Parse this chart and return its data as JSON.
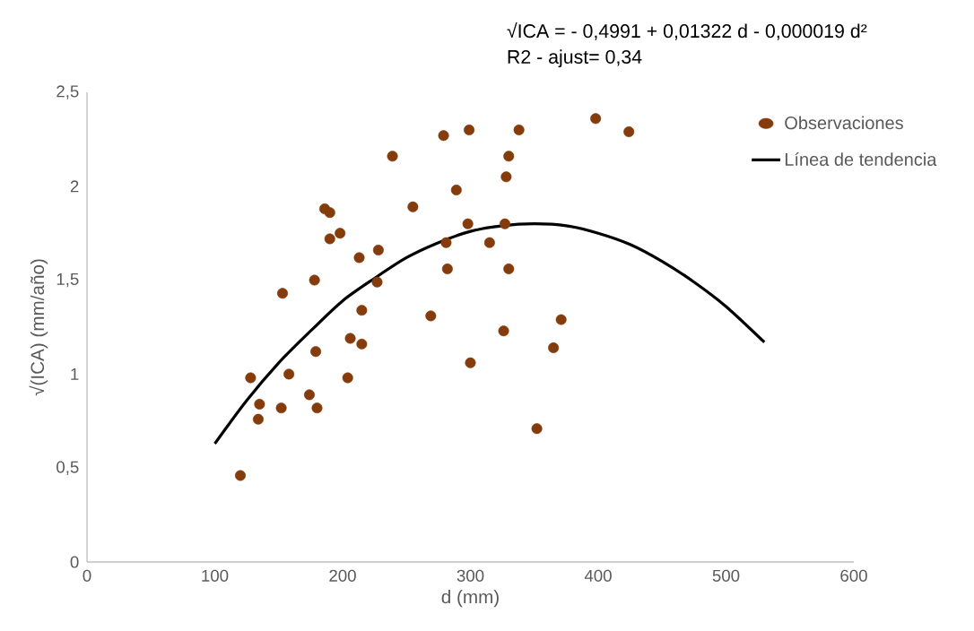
{
  "chart_data": {
    "type": "scatter",
    "xlabel": "d (mm)",
    "ylabel": "√(ICA) (mm/año)",
    "annotations": [
      "√ICA = - 0,4991 + 0,01322 d - 0,000019 d²",
      "R2 - ajust= 0,34"
    ],
    "xlim": [
      0,
      600
    ],
    "xticks": [
      0,
      100,
      200,
      300,
      400,
      500,
      600
    ],
    "ylim": [
      0,
      2.5
    ],
    "yticks": [
      0,
      {
        "value": 0.5,
        "label": "0,5"
      },
      1,
      {
        "value": 1.5,
        "label": "1,5"
      },
      2,
      {
        "value": 2.5,
        "label": "2,5"
      }
    ],
    "grid": false,
    "legend": "top right",
    "series": [
      {
        "name": "Observaciones",
        "type": "scatter",
        "color": "#843c0c",
        "marker": "circle",
        "x": [
          120,
          128,
          135,
          134,
          152,
          153,
          158,
          174,
          180,
          178,
          179,
          186,
          190,
          190,
          198,
          204,
          206,
          213,
          215,
          215,
          228,
          227,
          239,
          255,
          269,
          279,
          281,
          282,
          289,
          298,
          299,
          300,
          315,
          326,
          327,
          328,
          330,
          330,
          338,
          352,
          365,
          371,
          398,
          424
        ],
        "values": [
          0.46,
          0.98,
          0.84,
          0.76,
          0.82,
          1.43,
          1.0,
          0.89,
          0.82,
          1.5,
          1.12,
          1.88,
          1.86,
          1.72,
          1.75,
          0.98,
          1.19,
          1.62,
          1.34,
          1.16,
          1.66,
          1.49,
          2.16,
          1.89,
          1.31,
          2.27,
          1.7,
          1.56,
          1.98,
          1.8,
          2.3,
          1.06,
          1.7,
          1.23,
          1.8,
          2.05,
          2.16,
          1.56,
          2.3,
          0.71,
          1.14,
          1.29,
          2.36,
          2.29
        ]
      },
      {
        "name": "Línea de tendencia",
        "type": "line",
        "color": "#000000",
        "marker": "none",
        "line_style": "solid",
        "x": [
          100,
          125,
          150,
          175,
          200,
          225,
          250,
          275,
          300,
          325,
          350,
          375,
          400,
          425,
          450,
          475,
          500,
          530
        ],
        "values": [
          0.63,
          0.86,
          1.06,
          1.23,
          1.39,
          1.51,
          1.62,
          1.7,
          1.76,
          1.79,
          1.8,
          1.79,
          1.75,
          1.69,
          1.6,
          1.49,
          1.36,
          1.17
        ]
      }
    ]
  }
}
